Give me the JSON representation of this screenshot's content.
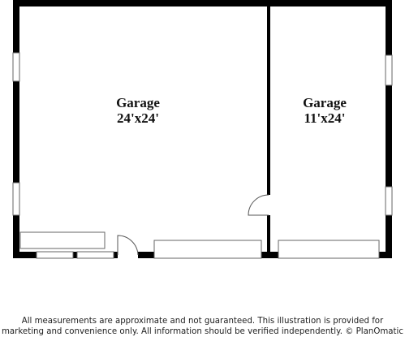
{
  "rooms": [
    {
      "name": "Garage",
      "dimensions": "24'x24'"
    },
    {
      "name": "Garage",
      "dimensions": "11'x24'"
    }
  ],
  "disclaimer": [
    "All measurements are approximate and not guaranteed. This illustration is provided for",
    "marketing and convenience only. All information should be verified independently. © PlanOmatic"
  ]
}
